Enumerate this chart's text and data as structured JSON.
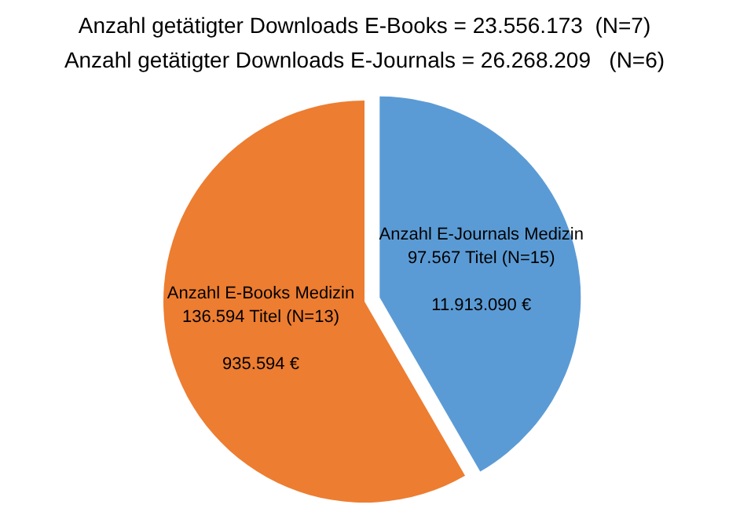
{
  "chart_data": {
    "type": "pie",
    "title": "Anzahl getätigter Downloads E-Books = 23.556.173  (N=7)",
    "subtitle": "Anzahl getätigter Downloads E-Journals = 26.268.209   (N=6)",
    "categories": [
      "Anzahl E-Books Medizin",
      "Anzahl E-Journals Medizin"
    ],
    "values": [
      136594,
      97567
    ],
    "value_labels": [
      "136.594 Titel (N=13)",
      "97.567 Titel (N=15)"
    ],
    "colors": [
      "#ed7d31",
      "#5b9bd5"
    ],
    "annotations": [
      "935.594 €",
      "11.913.090 €"
    ],
    "legend": false
  }
}
